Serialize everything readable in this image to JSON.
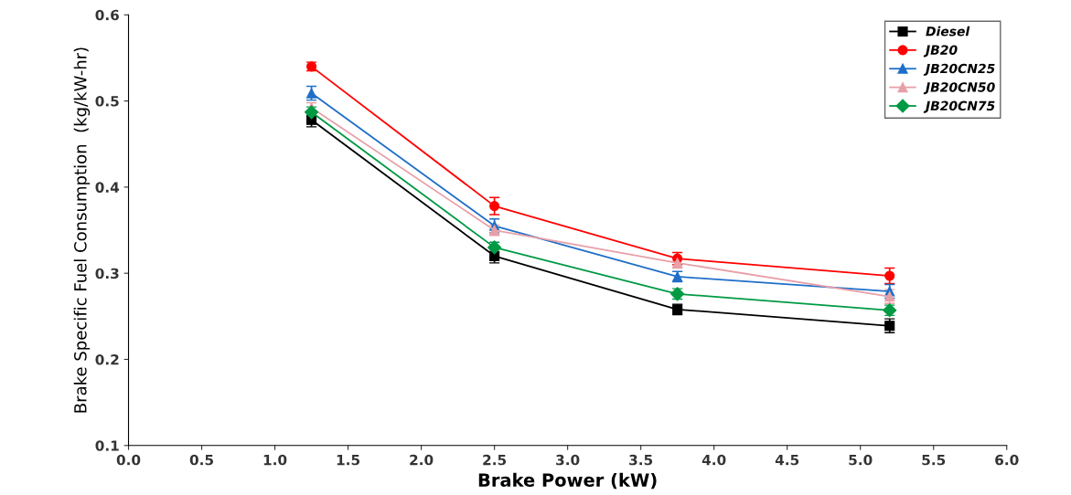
{
  "chart_data": {
    "type": "line",
    "xlabel": "Brake Power (kW)",
    "ylabel": "Brake Specific Fuel Consumption  (kg/kW-hr)",
    "x": [
      1.25,
      2.5,
      3.75,
      5.2
    ],
    "xlim": [
      0,
      6
    ],
    "xticks": [
      {
        "value": 0,
        "label": "0.0"
      },
      0.5,
      {
        "value": 1,
        "label": "1.0"
      },
      1.5,
      {
        "value": 2,
        "label": "2.0"
      },
      2.5,
      {
        "value": 3,
        "label": "3.0"
      },
      3.5,
      {
        "value": 4,
        "label": "4.0"
      },
      4.5,
      {
        "value": 5,
        "label": "5.0"
      },
      5.5,
      {
        "value": 6,
        "label": "6.0"
      }
    ],
    "ylim": [
      0.1,
      0.6
    ],
    "yticks": [
      0.1,
      0.2,
      0.3,
      0.4,
      0.5,
      0.6
    ],
    "grid": false,
    "legend": "top right",
    "line_style": "solid",
    "series": [
      {
        "name": "Diesel",
        "color": "#000000",
        "marker": "square",
        "values": [
          0.478,
          0.32,
          0.258,
          0.239
        ],
        "errors": [
          0.008,
          0.008,
          0.006,
          0.008
        ]
      },
      {
        "name": "JB20",
        "color": "#ff0000",
        "marker": "circle",
        "values": [
          0.54,
          0.378,
          0.317,
          0.297
        ],
        "errors": [
          0.005,
          0.01,
          0.007,
          0.009
        ]
      },
      {
        "name": "JB20CN25",
        "color": "#1f6fc8",
        "marker": "triangle",
        "values": [
          0.509,
          0.355,
          0.296,
          0.279
        ],
        "errors": [
          0.008,
          0.008,
          0.006,
          0.008
        ]
      },
      {
        "name": "JB20CN50",
        "color": "#e8a0a8",
        "marker": "triangle",
        "values": [
          0.492,
          0.35,
          0.312,
          0.273
        ],
        "errors": [
          0.006,
          0.006,
          0.006,
          0.008
        ]
      },
      {
        "name": "JB20CN75",
        "color": "#009a44",
        "marker": "diamond",
        "values": [
          0.487,
          0.33,
          0.276,
          0.257
        ],
        "errors": [
          0.006,
          0.006,
          0.006,
          0.006
        ]
      }
    ]
  }
}
